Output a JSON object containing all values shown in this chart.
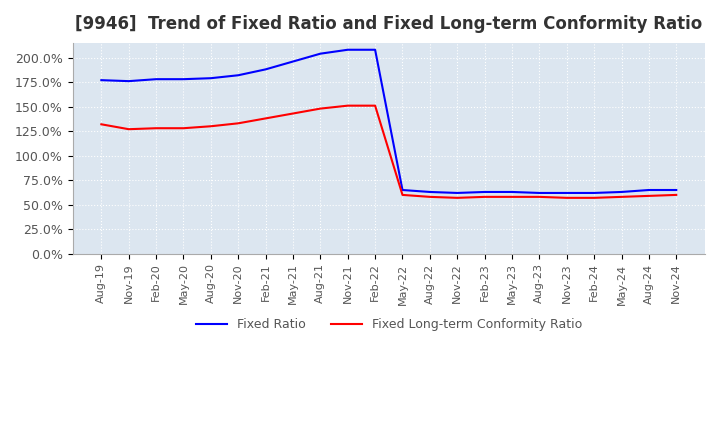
{
  "title": "[9946]  Trend of Fixed Ratio and Fixed Long-term Conformity Ratio",
  "title_fontsize": 12,
  "background_color": "#ffffff",
  "plot_bg_color": "#dce6f0",
  "grid_color": "#ffffff",
  "x_labels": [
    "Aug-19",
    "Nov-19",
    "Feb-20",
    "May-20",
    "Aug-20",
    "Nov-20",
    "Feb-21",
    "May-21",
    "Aug-21",
    "Nov-21",
    "Feb-22",
    "May-22",
    "Aug-22",
    "Nov-22",
    "Feb-23",
    "May-23",
    "Aug-23",
    "Nov-23",
    "Feb-24",
    "May-24",
    "Aug-24",
    "Nov-24"
  ],
  "fixed_ratio": [
    177,
    176,
    178,
    178,
    179,
    182,
    188,
    196,
    204,
    208,
    208,
    65,
    63,
    62,
    63,
    63,
    62,
    62,
    62,
    63,
    65,
    65
  ],
  "fixed_ltcr": [
    132,
    127,
    128,
    128,
    130,
    133,
    138,
    143,
    148,
    151,
    151,
    60,
    58,
    57,
    58,
    58,
    58,
    57,
    57,
    58,
    59,
    60
  ],
  "fixed_ratio_color": "#0000ff",
  "fixed_ltcr_color": "#ff0000",
  "ylim": [
    0,
    215
  ],
  "yticks": [
    0,
    25,
    50,
    75,
    100,
    125,
    150,
    175,
    200
  ],
  "legend_labels": [
    "Fixed Ratio",
    "Fixed Long-term Conformity Ratio"
  ]
}
